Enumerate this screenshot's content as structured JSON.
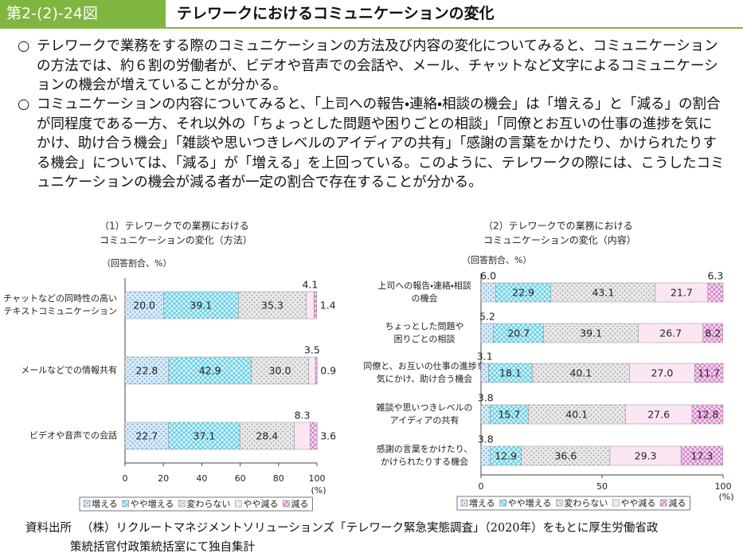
{
  "header": {
    "figure_no": "第2-(2)-24図",
    "title": "テレワークにおけるコミュニケーションの変化"
  },
  "paragraphs": [
    {
      "bullet": "○",
      "text": "テレワークで業務をする際のコミュニケーションの方法及び内容の変化についてみると、コミュニケーションの方法では、約６割の労働者が、ビデオや音声での会話や、メール、チャットなど文字によるコミュニケーションの機会が増えていることが分かる。"
    },
    {
      "bullet": "○",
      "text": "コミュニケーションの内容についてみると、「上司への報告・連絡・相談の機会」は「増える」と「減る」の割合が同程度である一方、それ以外の「ちょっとした問題や困りごとの相談」「同僚とお互いの仕事の進捗を気にかけ、助け合う機会」「雑談や思いつきレベルのアイディアの共有」「感謝の言葉をかけたり、かけられたりする機会」については、「減る」が「増える」を上回っている。このように、テレワークの際には、こうしたコミュニケーションの機会が減る者が一定の割合で存在することが分かる。"
    }
  ],
  "chart_data": [
    {
      "type": "stacked-bar",
      "title": [
        "（1）テレワークでの業務における",
        "コミュニケーションの変化（方法）"
      ],
      "unit_label": "（回答割合、%）",
      "xlabel": "(%)",
      "categories": [
        [
          "チャットなどの同時性の高い",
          "テキストコミュニケーション"
        ],
        [
          "メールなどでの情報共有"
        ],
        [
          "ビデオや音声での会話"
        ]
      ],
      "xlim": [
        0,
        100
      ],
      "xticks": [
        0,
        20,
        40,
        60,
        80,
        100
      ],
      "series": [
        {
          "name": "増える",
          "color": "#4f9fd8",
          "values": [
            20.0,
            22.8,
            22.7
          ],
          "value_labels": [
            "20.0",
            "22.8",
            "22.7"
          ]
        },
        {
          "name": "やや増える",
          "color": "#3fc4e0",
          "values": [
            39.1,
            42.9,
            37.1
          ],
          "value_labels": [
            "39.1",
            "42.9",
            "37.1"
          ]
        },
        {
          "name": "変わらない",
          "color": "#9a9a9a",
          "values": [
            35.3,
            30.0,
            28.4
          ],
          "value_labels": [
            "35.3",
            "30.0",
            "28.4"
          ]
        },
        {
          "name": "やや減る",
          "color": "#f19ad2",
          "values": [
            4.1,
            3.5,
            8.3
          ],
          "value_labels": [
            "4.1",
            "3.5",
            "8.3"
          ]
        },
        {
          "name": "減る",
          "color": "#cf63bd",
          "values": [
            1.4,
            0.9,
            3.6
          ],
          "value_labels": [
            "1.4",
            "0.9",
            "3.6"
          ]
        }
      ]
    },
    {
      "type": "stacked-bar",
      "title": [
        "（2）テレワークでの業務における",
        "コミュニケーションの変化（内容）"
      ],
      "unit_label": "（回答割合、%）",
      "xlabel": "(%)",
      "categories": [
        [
          "上司への報告・連絡・相談",
          "の機会"
        ],
        [
          "ちょっとした問題や",
          "困りごとの相談"
        ],
        [
          "同僚と、お互いの仕事の進捗を",
          "気にかけ、助け合う機会"
        ],
        [
          "雑談や思いつきレベルの",
          "アイディアの共有"
        ],
        [
          "感謝の言葉をかけたり、",
          "かけられたりする機会"
        ]
      ],
      "xlim": [
        0,
        100
      ],
      "xticks": [
        0,
        50,
        100
      ],
      "series": [
        {
          "name": "増える",
          "color": "#4f9fd8",
          "values": [
            6.0,
            5.2,
            3.1,
            3.8,
            3.8
          ],
          "value_labels": [
            "6.0",
            "5.2",
            "3.1",
            "3.8",
            "3.8"
          ]
        },
        {
          "name": "やや増える",
          "color": "#3fc4e0",
          "values": [
            22.9,
            20.7,
            18.1,
            15.7,
            12.9
          ],
          "value_labels": [
            "22.9",
            "20.7",
            "18.1",
            "15.7",
            "12.9"
          ]
        },
        {
          "name": "変わらない",
          "color": "#9a9a9a",
          "values": [
            43.1,
            39.1,
            40.1,
            40.1,
            36.6
          ],
          "value_labels": [
            "43.1",
            "39.1",
            "40.1",
            "40.1",
            "36.6"
          ]
        },
        {
          "name": "やや減る",
          "color": "#f19ad2",
          "values": [
            21.7,
            26.7,
            27.0,
            27.6,
            29.3
          ],
          "value_labels": [
            "21.7",
            "26.7",
            "27.0",
            "27.6",
            "29.3"
          ]
        },
        {
          "name": "減る",
          "color": "#cf63bd",
          "values": [
            6.3,
            8.2,
            11.7,
            12.8,
            17.3
          ],
          "value_labels": [
            "6.3",
            "8.2",
            "11.7",
            "12.8",
            "17.3"
          ]
        }
      ]
    }
  ],
  "source": {
    "label": "資料出所",
    "lines": [
      "（株）リクルートマネジメントソリューションズ「テレワーク緊急実態調査」（2020年）をもとに厚生労働省政",
      "策統括官付政策統括室にて独自集計"
    ]
  }
}
